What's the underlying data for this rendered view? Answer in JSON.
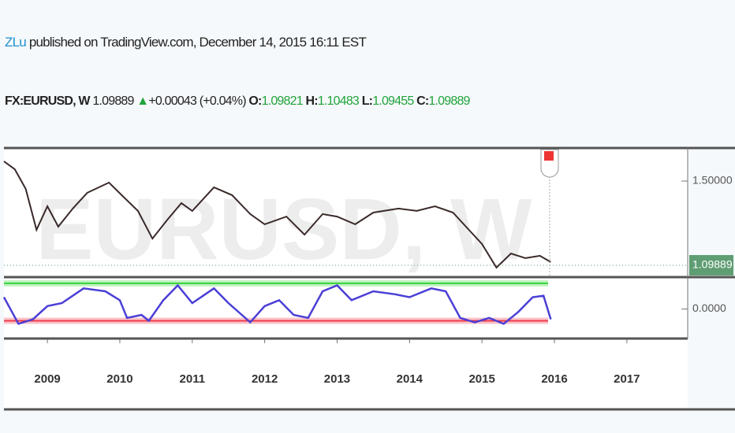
{
  "header": {
    "author": "ZLu",
    "published": " published on TradingView.com, December 14, 2015 16:11 EST"
  },
  "ticker": {
    "symbol": "FX:EURUSD, W",
    "price": "1.09889",
    "change": "+0.00043 (+0.04%)",
    "open_label": "O:",
    "open": "1.09821",
    "high_label": "H:",
    "high": "1.10483",
    "low_label": "L:",
    "low": "1.09455",
    "close_label": "C:",
    "close": "1.09889"
  },
  "chart_data": [
    {
      "type": "line",
      "watermark": "EURUSD, W",
      "x": [
        2008.4,
        2008.55,
        2008.7,
        2008.85,
        2009.0,
        2009.15,
        2009.35,
        2009.55,
        2009.85,
        2010.05,
        2010.25,
        2010.45,
        2010.65,
        2010.85,
        2011.0,
        2011.3,
        2011.55,
        2011.8,
        2012.0,
        2012.3,
        2012.55,
        2012.8,
        2013.0,
        2013.25,
        2013.5,
        2013.85,
        2014.1,
        2014.35,
        2014.6,
        2014.8,
        2015.0,
        2015.2,
        2015.4,
        2015.6,
        2015.8,
        2015.95
      ],
      "values": [
        1.594,
        1.556,
        1.463,
        1.268,
        1.38,
        1.283,
        1.369,
        1.444,
        1.493,
        1.425,
        1.358,
        1.226,
        1.313,
        1.395,
        1.358,
        1.47,
        1.433,
        1.343,
        1.294,
        1.331,
        1.245,
        1.343,
        1.331,
        1.294,
        1.35,
        1.369,
        1.358,
        1.38,
        1.35,
        1.275,
        1.2,
        1.088,
        1.155,
        1.133,
        1.144,
        1.114
      ],
      "color": "#3a2a2a",
      "last_price": 1.09889,
      "last_price_color": "#5f9e73",
      "xlim": [
        2008.4,
        2017.84
      ],
      "xticks": [
        2009,
        2010,
        2011,
        2012,
        2013,
        2014,
        2015,
        2016,
        2017
      ],
      "ylim": [
        1.0425,
        1.65
      ],
      "yticks": [
        {
          "value": 1.5,
          "label": "1.50000"
        }
      ]
    },
    {
      "type": "line",
      "x": [
        2008.4,
        2008.6,
        2008.8,
        2009.0,
        2009.2,
        2009.5,
        2009.8,
        2010.0,
        2010.1,
        2010.3,
        2010.4,
        2010.6,
        2010.8,
        2011.0,
        2011.3,
        2011.5,
        2011.8,
        2012.0,
        2012.2,
        2012.4,
        2012.6,
        2012.8,
        2013.0,
        2013.2,
        2013.5,
        2013.8,
        2014.0,
        2014.3,
        2014.5,
        2014.7,
        2014.9,
        2015.1,
        2015.3,
        2015.5,
        2015.7,
        2015.85,
        2015.95
      ],
      "values": [
        0.4,
        -0.5,
        -0.35,
        0.1,
        0.2,
        0.7,
        0.6,
        0.3,
        -0.3,
        -0.2,
        -0.4,
        0.3,
        0.8,
        0.2,
        0.7,
        0.2,
        -0.45,
        0.1,
        0.3,
        -0.2,
        -0.3,
        0.6,
        0.8,
        0.3,
        0.6,
        0.5,
        0.4,
        0.7,
        0.6,
        -0.3,
        -0.45,
        -0.3,
        -0.5,
        -0.1,
        0.4,
        0.45,
        -0.35
      ],
      "color": "#4b3fd6",
      "bands": [
        {
          "value": 0.87,
          "color": "#35d43a"
        },
        {
          "value": -0.4,
          "color": "#ef3b4a"
        }
      ],
      "xlim": [
        2008.4,
        2017.84
      ],
      "ylim": [
        -1,
        1
      ],
      "yticks": [
        {
          "value": 0,
          "label": "0.0000"
        }
      ]
    }
  ]
}
